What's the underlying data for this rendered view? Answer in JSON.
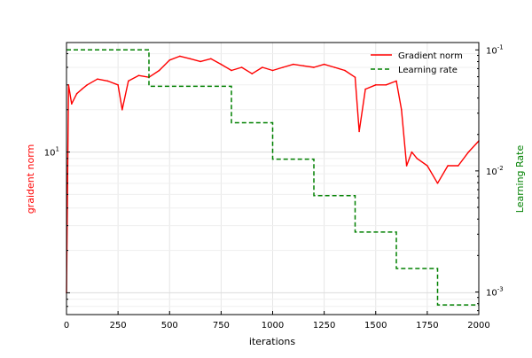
{
  "chart_data": {
    "type": "line",
    "xlabel": "iterations",
    "ylabel_left": "graident norm",
    "ylabel_right": "Learning Rate",
    "xlim": [
      0,
      2000
    ],
    "ylim_left": [
      0.7,
      60
    ],
    "ylim_right": [
      0.00065,
      0.115
    ],
    "yscale_left": "log",
    "yscale_right": "log",
    "grid": true,
    "legend_position": "top-right",
    "x_ticks": [
      "0",
      "250",
      "500",
      "750",
      "1000",
      "1250",
      "1500",
      "1750",
      "2000"
    ],
    "y_left_tick_labels": [
      "10^1"
    ],
    "y_right_tick_labels": [
      "10^-3",
      "10^-2",
      "10^-1"
    ],
    "colors": {
      "gradient": "#ff0000",
      "learning_rate": "#008000",
      "left_axis_label": "#ff0000",
      "right_axis_label": "#008000"
    },
    "series": [
      {
        "name": "Gradient norm",
        "axis": "left",
        "style": "solid",
        "color": "#ff0000",
        "x": [
          0,
          10,
          25,
          50,
          75,
          100,
          150,
          200,
          250,
          270,
          300,
          350,
          400,
          450,
          500,
          550,
          600,
          650,
          700,
          750,
          800,
          850,
          900,
          950,
          1000,
          1050,
          1100,
          1150,
          1200,
          1250,
          1300,
          1350,
          1400,
          1420,
          1450,
          1500,
          1550,
          1600,
          1625,
          1650,
          1675,
          1700,
          1750,
          1800,
          1850,
          1900,
          1950,
          2000
        ],
        "values": [
          1.0,
          30,
          22,
          26,
          28,
          30,
          33,
          32,
          30,
          20,
          32,
          35,
          34,
          38,
          45,
          48,
          46,
          44,
          46,
          42,
          38,
          40,
          36,
          40,
          38,
          40,
          42,
          41,
          40,
          42,
          40,
          38,
          34,
          14,
          28,
          30,
          30,
          32,
          20,
          8,
          10,
          9,
          8,
          6,
          8,
          8,
          10,
          12
        ]
      },
      {
        "name": "Learning rate",
        "axis": "right",
        "style": "dashed",
        "color": "#008000",
        "x": [
          0,
          400,
          400,
          800,
          800,
          1000,
          1000,
          1200,
          1200,
          1400,
          1400,
          1600,
          1600,
          1800,
          1800,
          2000
        ],
        "values": [
          0.1,
          0.1,
          0.05,
          0.05,
          0.025,
          0.025,
          0.0125,
          0.0125,
          0.00625,
          0.00625,
          0.003125,
          0.003125,
          0.0015625,
          0.0015625,
          0.00078125,
          0.00078125
        ]
      }
    ]
  }
}
